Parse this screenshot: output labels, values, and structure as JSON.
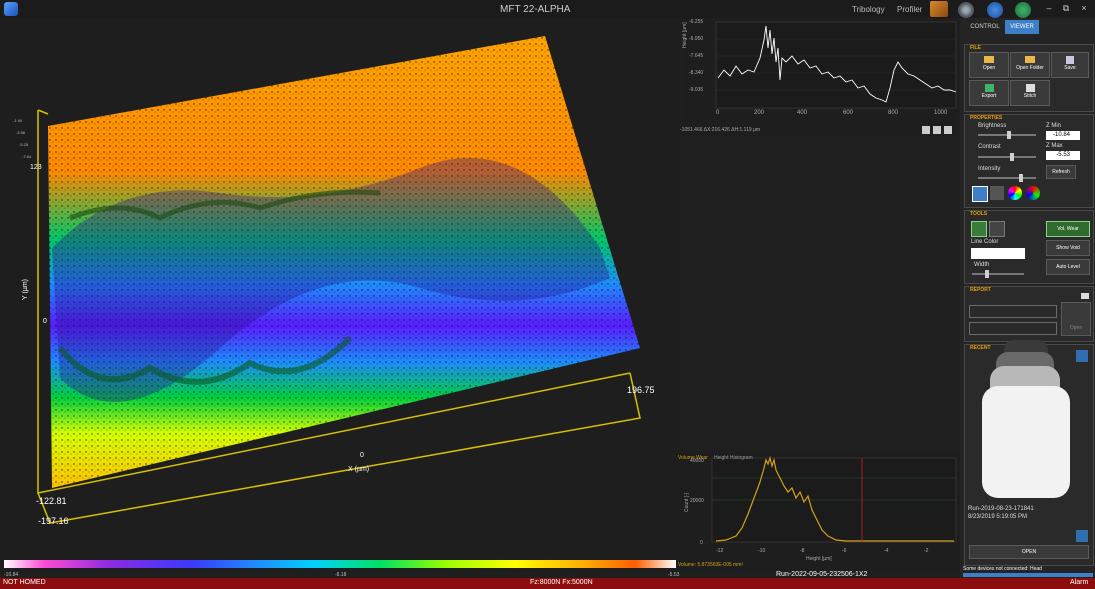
{
  "app": {
    "title": "MFT 22-ALPHA"
  },
  "topnav": {
    "tribology": "Tribology",
    "profiler": "Profiler"
  },
  "window": {
    "minimize": "–",
    "restore": "⧉",
    "close": "×"
  },
  "tabs": {
    "control": "CONTROL",
    "viewer": "VIEWER"
  },
  "view3d": {
    "x_axis_label": "X (µm)",
    "y_axis_label": "Y (µm)",
    "x_tick_min": "-197.16",
    "x_tick_mid": "0",
    "x_tick_max": "196.75",
    "y_tick_min": "-122.81",
    "y_tick_mid": "0",
    "y_tick_max": "123",
    "z_ticks": [
      "-1.90",
      "-3.56",
      "-5.25",
      "-7.64"
    ]
  },
  "scale": {
    "min": "-10.84",
    "mid": "-8.18",
    "max": "-5.53"
  },
  "status": {
    "left": "NOT HOMED",
    "forces": "Fz:8000N Fx:5000N",
    "run": "Run-2022-09-05-232506-1X2",
    "alarm": "Alarm"
  },
  "profile": {
    "ylabel": "Height [µm]",
    "yticks": [
      "-6.255",
      "-6.950",
      "-7.645",
      "-8.340",
      "-9.035"
    ],
    "xticks": [
      "0",
      "200",
      "400",
      "600",
      "800",
      "1000"
    ],
    "readout": "-1051.466   ΔX:216.426   ΔH:1.119   µm"
  },
  "histogram": {
    "tab_volume": "Volume Wear",
    "tab_height": "Height Histogram",
    "ylabel": "Count [-]",
    "xlabel": "Height [µm]",
    "yticks": [
      "40000",
      "20000",
      "0"
    ],
    "xticks": [
      "-12",
      "-10",
      "-8",
      "-6",
      "-4",
      "-2"
    ],
    "volume_text": "Volume: 5.873563E-005 mm³"
  },
  "file_group": {
    "title": "FILE",
    "open": "Open",
    "open_folder": "Open Folder",
    "save": "Save",
    "export": "Export",
    "stitch": "Stitch"
  },
  "properties": {
    "title": "PROPERTIES",
    "brightness": "Brightness",
    "contrast": "Contrast",
    "intensity": "Intensity",
    "brightness_level": 0.5,
    "contrast_level": 0.55,
    "intensity_level": 0.7,
    "zmin_label": "Z Min",
    "zmin_value": "-10.84",
    "zmax_label": "Z Max",
    "zmax_value": "-5.53",
    "refresh": "Refresh"
  },
  "tools": {
    "title": "TOOLS",
    "line_color": "Line Color",
    "width": "Width",
    "width_level": 0.25,
    "vol_wear": "Vol. Wear",
    "show_void": "Show Void",
    "auto_level": "Auto Level"
  },
  "report": {
    "title": "REPORT",
    "open": "Open"
  },
  "recent": {
    "title": "RECENT",
    "item_name": "Run-2019-08-23-171841",
    "item_date": "8/23/2019 5:19:05 PM",
    "open_button": "OPEN"
  },
  "notice": "Some devices not connected: Head",
  "colors": {
    "accent": "#e8a000",
    "selected_tab": "#3d7fc9",
    "status_bar": "#8b0d0d",
    "profile_line": "#ffffff",
    "histogram_line": "#d4a017"
  }
}
